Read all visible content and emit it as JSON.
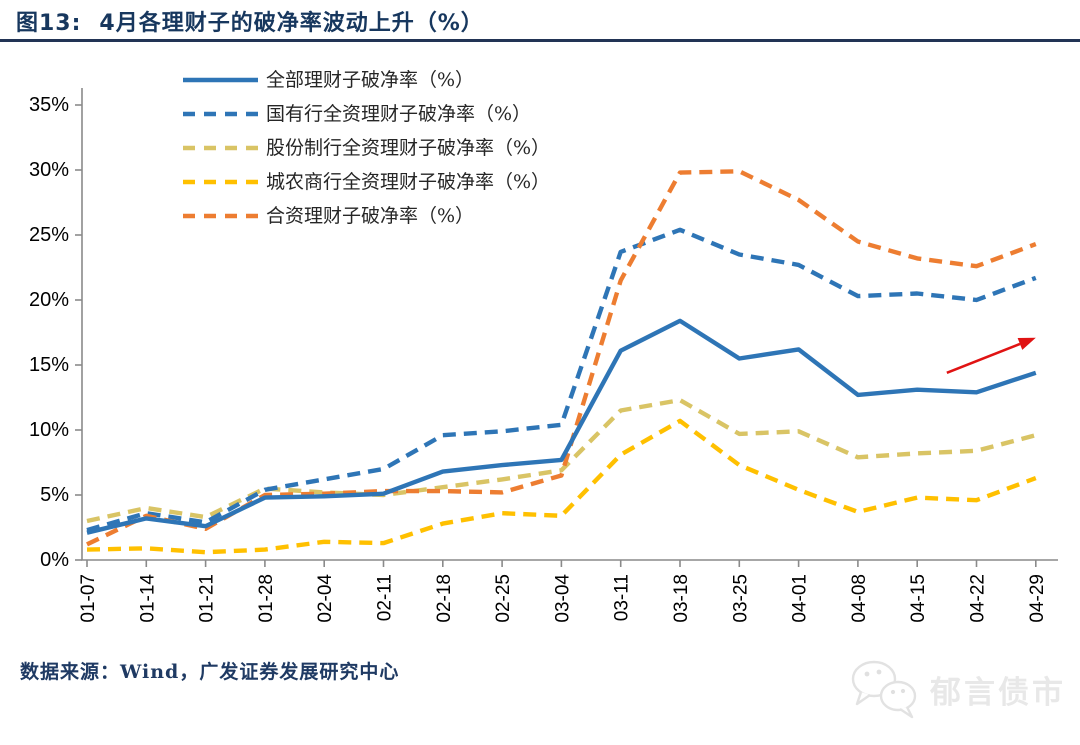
{
  "header": {
    "figure_label": "图13:",
    "title": "4月各理财子的破净率波动上升（%）"
  },
  "footer": {
    "source": "数据来源：Wind，广发证券发展研究中心"
  },
  "watermark": {
    "icon": "wechat-icon",
    "text": "郁言债市"
  },
  "chart_data": {
    "type": "line",
    "title": "4月各理财子的破净率波动上升（%）",
    "xlabel": "",
    "ylabel": "",
    "grid": false,
    "legend_position": "top-left",
    "ylim": [
      0,
      35
    ],
    "ytick_step": 5,
    "ytick_labels": [
      "0%",
      "5%",
      "10%",
      "15%",
      "20%",
      "25%",
      "30%",
      "35%"
    ],
    "categories": [
      "01-07",
      "01-14",
      "01-21",
      "01-28",
      "02-04",
      "02-11",
      "02-18",
      "02-25",
      "03-04",
      "03-11",
      "03-18",
      "03-25",
      "04-01",
      "04-08",
      "04-15",
      "04-22",
      "04-29"
    ],
    "series": [
      {
        "name": "全部理财子破净率（%）",
        "color": "#2e75b6",
        "dash": "solid",
        "values": [
          2.1,
          3.2,
          2.6,
          4.8,
          4.9,
          5.1,
          6.8,
          7.3,
          7.7,
          16.1,
          18.4,
          15.5,
          16.2,
          12.7,
          13.1,
          12.9,
          14.4
        ]
      },
      {
        "name": "国有行全资理财子破净率（%）",
        "color": "#2e75b6",
        "dash": "dashed",
        "values": [
          2.3,
          3.6,
          2.9,
          5.4,
          6.2,
          7.0,
          9.6,
          9.9,
          10.4,
          23.7,
          25.4,
          23.5,
          22.7,
          20.3,
          20.5,
          20.0,
          21.7
        ]
      },
      {
        "name": "股份制行全资理财子破净率（%）",
        "color": "#d9c465",
        "dash": "dashed",
        "values": [
          3.0,
          4.0,
          3.3,
          5.5,
          5.2,
          5.0,
          5.6,
          6.2,
          6.9,
          11.5,
          12.3,
          9.7,
          9.9,
          7.9,
          8.2,
          8.4,
          9.6
        ]
      },
      {
        "name": "城农商行全资理财子破净率（%）",
        "color": "#ffc000",
        "dash": "dashed",
        "values": [
          0.8,
          0.9,
          0.6,
          0.8,
          1.4,
          1.3,
          2.8,
          3.6,
          3.4,
          8.1,
          10.7,
          7.3,
          5.4,
          3.7,
          4.8,
          4.6,
          6.3
        ]
      },
      {
        "name": "合资理财子破净率（%）",
        "color": "#ed7d31",
        "dash": "dashed",
        "values": [
          1.2,
          3.4,
          2.4,
          5.0,
          5.1,
          5.3,
          5.3,
          5.2,
          6.5,
          21.5,
          29.8,
          29.9,
          27.7,
          24.5,
          23.2,
          22.6,
          24.3
        ]
      }
    ],
    "annotation_arrow": {
      "description": "upward red trend arrow over the tail of the solid line",
      "from_index": 14.5,
      "from_value": 14.4,
      "to_index": 16.0,
      "to_value": 17.1,
      "color": "#e01313"
    }
  }
}
